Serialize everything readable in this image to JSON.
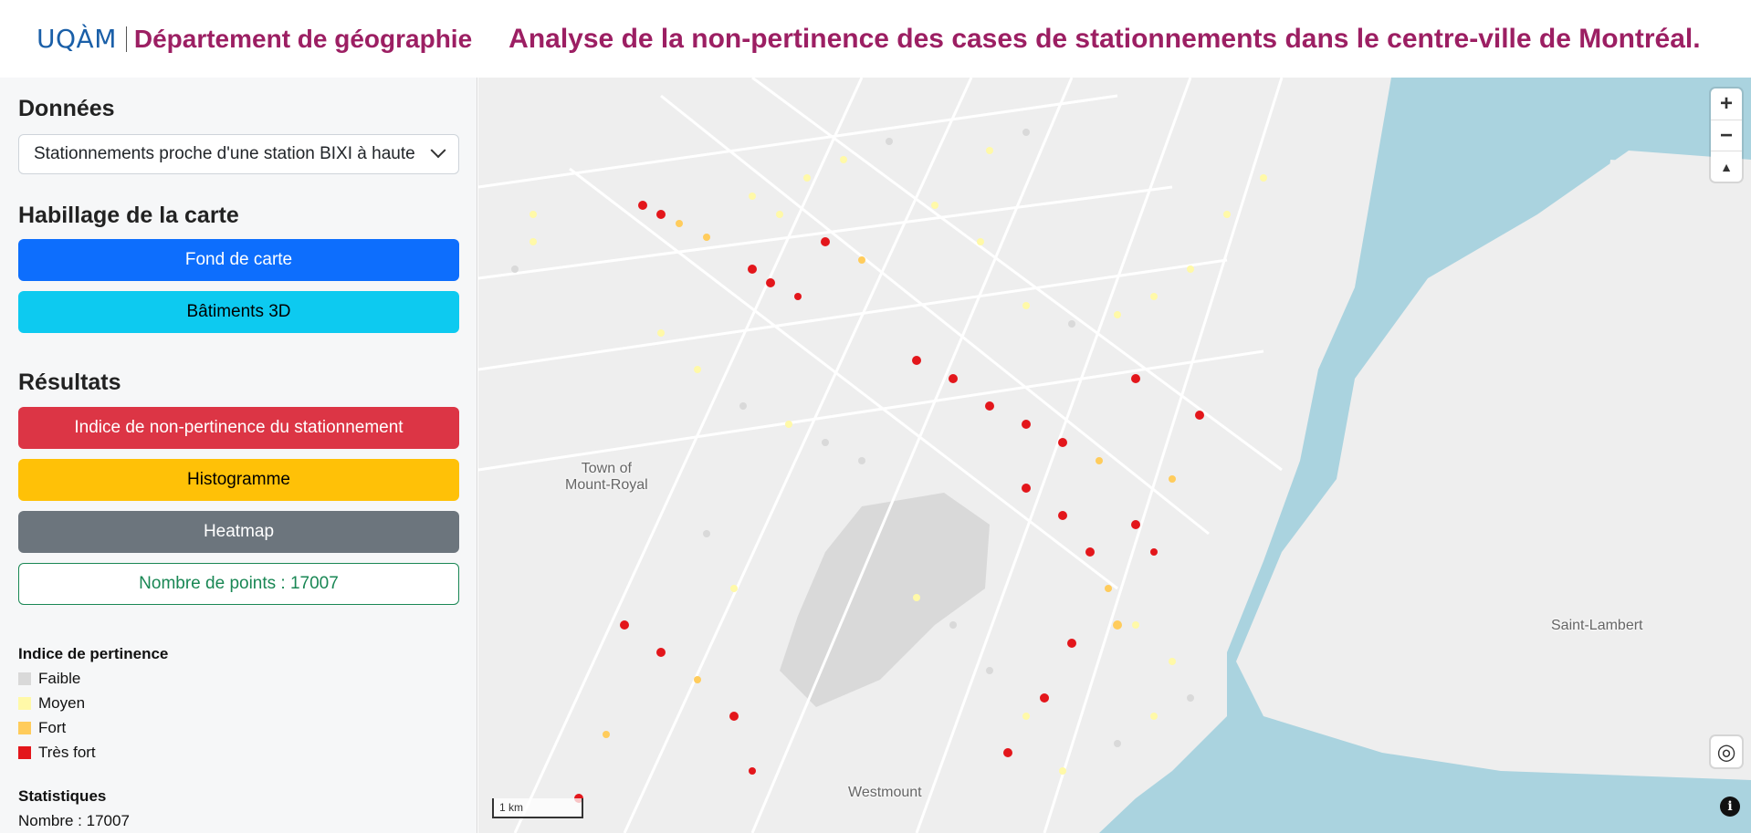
{
  "header": {
    "logo": "UQÀM",
    "department": "Département de géographie",
    "title": "Analyse de la non-pertinence des cases de stationnements dans le centre-ville de Montréal."
  },
  "sidebar": {
    "data_section_title": "Données",
    "data_select_value": "Stationnements proche d'une station BIXI à haute",
    "styling_section_title": "Habillage de la carte",
    "basemap_button": "Fond de carte",
    "buildings_button": "Bâtiments 3D",
    "results_section_title": "Résultats",
    "index_button": "Indice de non-pertinence du stationnement",
    "histogram_button": "Histogramme",
    "heatmap_button": "Heatmap",
    "points_count": "Nombre de points : 17007",
    "legend": {
      "title": "Indice de pertinence",
      "items": [
        {
          "label": "Faible",
          "color": "#d9d9d9"
        },
        {
          "label": "Moyen",
          "color": "#fff9a8"
        },
        {
          "label": "Fort",
          "color": "#ffcc5c"
        },
        {
          "label": "Très fort",
          "color": "#e3161b"
        }
      ]
    },
    "stats": {
      "title": "Statistiques",
      "count": "Nombre : 17007"
    }
  },
  "map": {
    "labels": {
      "town": "Town of\nMount-Royal",
      "westmount": "Westmount",
      "saint_lambert": "Saint-Lambert"
    },
    "scale": "1 km",
    "zoom_in": "+",
    "zoom_out": "−",
    "compass": "▲",
    "locate": "◎",
    "info": "i",
    "water_color": "#aad3df",
    "park_color": "#d9d9d9"
  }
}
